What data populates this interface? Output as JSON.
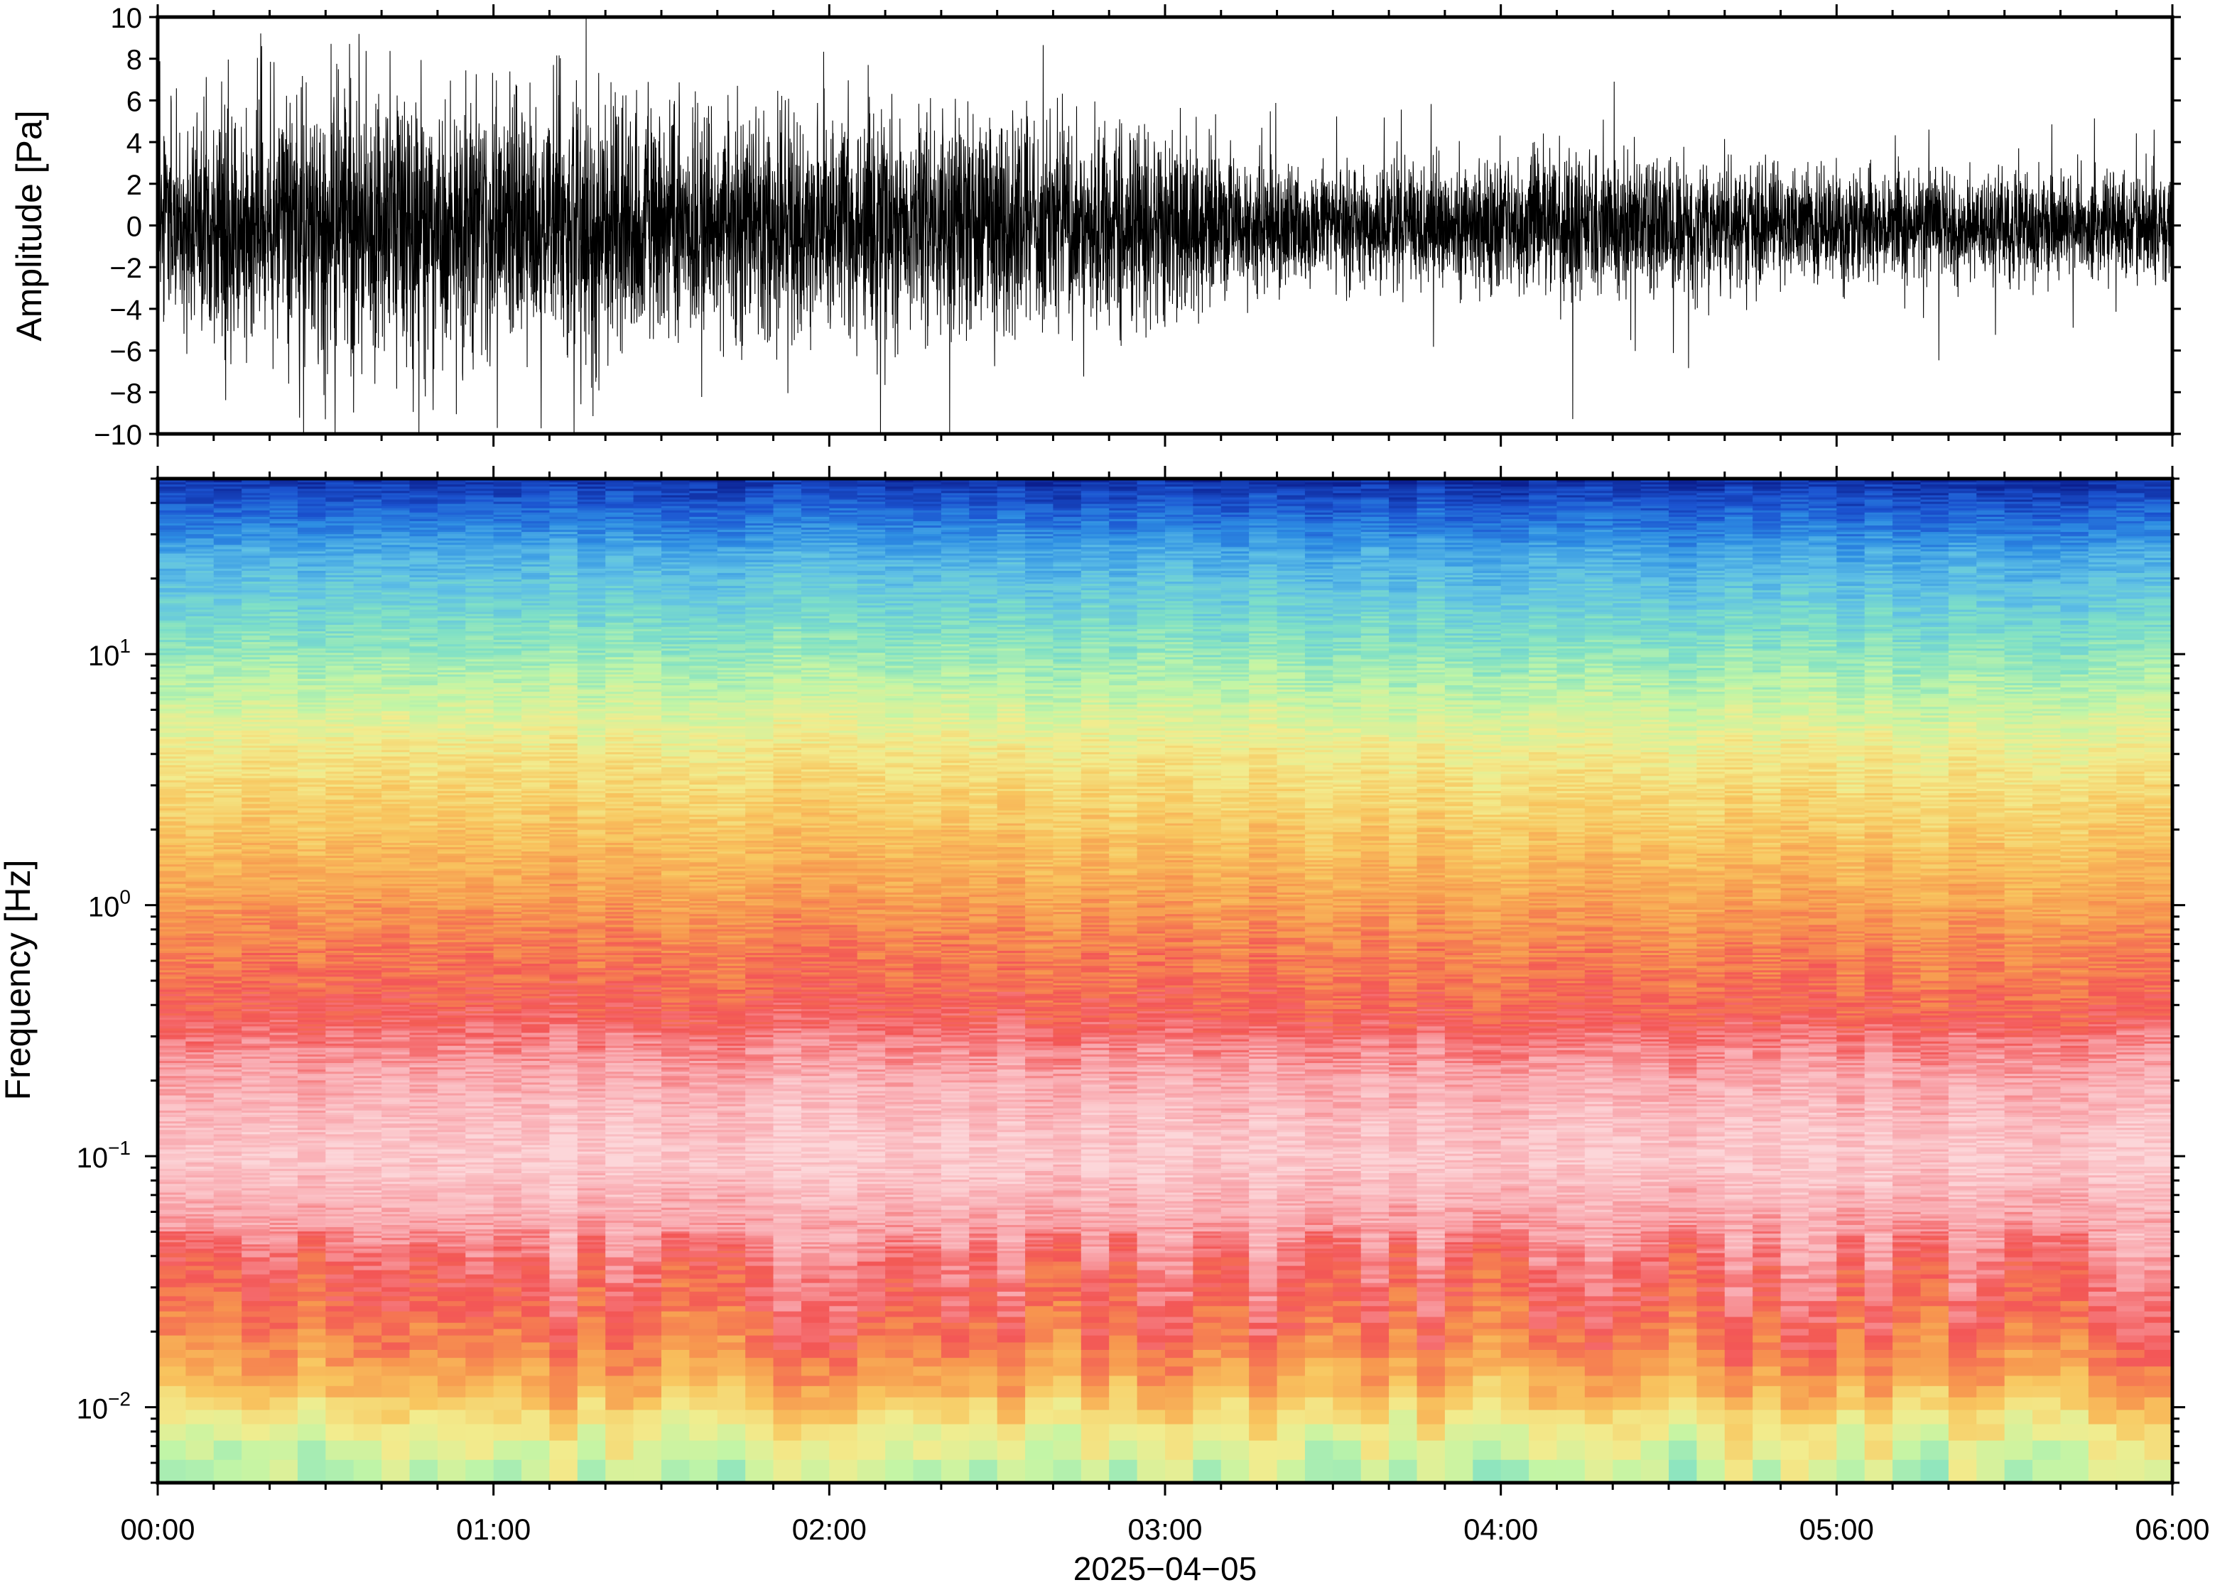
{
  "chart_data": [
    {
      "type": "line",
      "panel": "waveform",
      "ylabel": "Amplitude [Pa]",
      "ylim": [
        -10,
        10
      ],
      "yticks": [
        -10,
        -8,
        -6,
        -4,
        -2,
        0,
        2,
        4,
        6,
        8,
        10
      ],
      "ytick_labels": [
        "−10",
        "−8",
        "−6",
        "−4",
        "−2",
        "0",
        "2",
        "4",
        "6",
        "8",
        "10"
      ],
      "xlim_hours": [
        0,
        6
      ],
      "envelope": {
        "time_hours": [
          0.0,
          0.25,
          0.5,
          0.75,
          1.0,
          1.25,
          1.5,
          1.75,
          2.0,
          2.25,
          2.5,
          2.75,
          3.0,
          3.25,
          3.5,
          3.75,
          4.0,
          4.25,
          4.5,
          4.75,
          5.0,
          5.25,
          5.5,
          5.75,
          6.0
        ],
        "typical_abs_amplitude_pa": [
          2.4,
          2.8,
          3.4,
          3.2,
          3.0,
          3.0,
          2.8,
          2.7,
          2.6,
          2.9,
          2.6,
          2.3,
          2.2,
          1.6,
          1.4,
          1.5,
          1.6,
          1.7,
          1.5,
          1.4,
          1.4,
          1.3,
          1.3,
          1.2,
          1.3
        ],
        "peak_abs_amplitude_pa": [
          8.0,
          9.0,
          10.0,
          9.5,
          9.0,
          9.0,
          10.0,
          9.0,
          9.0,
          10.0,
          10.0,
          8.0,
          9.0,
          6.0,
          6.0,
          6.0,
          6.0,
          5.5,
          5.5,
          5.0,
          5.0,
          5.0,
          5.5,
          5.0,
          5.0
        ]
      },
      "grid": false
    },
    {
      "type": "heatmap",
      "panel": "spectrogram",
      "ylabel": "Frequency [Hz]",
      "yscale": "log",
      "ylim_hz": [
        0.005,
        50
      ],
      "yticks_hz": [
        0.01,
        0.1,
        1,
        10
      ],
      "ytick_labels": [
        {
          "base": "10",
          "exp": "−2"
        },
        {
          "base": "10",
          "exp": "−1"
        },
        {
          "base": "10",
          "exp": "0"
        },
        {
          "base": "10",
          "exp": "1"
        }
      ],
      "xlabel": "2025−04−05",
      "xticks_hours": [
        0,
        1,
        2,
        3,
        4,
        5,
        6
      ],
      "xtick_labels": [
        "00:00",
        "01:00",
        "02:00",
        "03:00",
        "04:00",
        "05:00",
        "06:00"
      ],
      "colormap_stops": [
        "#0b1f8f",
        "#1b53d0",
        "#2e8ee3",
        "#5fc0e5",
        "#7fe0c6",
        "#c2f5a6",
        "#f2ec8e",
        "#f8c65f",
        "#f7984f",
        "#f35656",
        "#f9a8ae",
        "#fcd6d9"
      ],
      "relative_power_profile": {
        "freq_hz": [
          0.005,
          0.008,
          0.012,
          0.018,
          0.025,
          0.035,
          0.06,
          0.1,
          0.2,
          0.4,
          0.7,
          1.5,
          4,
          10,
          25,
          50
        ],
        "colormap_index": [
          5.0,
          6.0,
          7.5,
          8.5,
          9.0,
          9.3,
          10.2,
          10.8,
          10.2,
          9.0,
          8.5,
          7.5,
          6.3,
          4.5,
          2.8,
          0.5
        ]
      }
    }
  ]
}
